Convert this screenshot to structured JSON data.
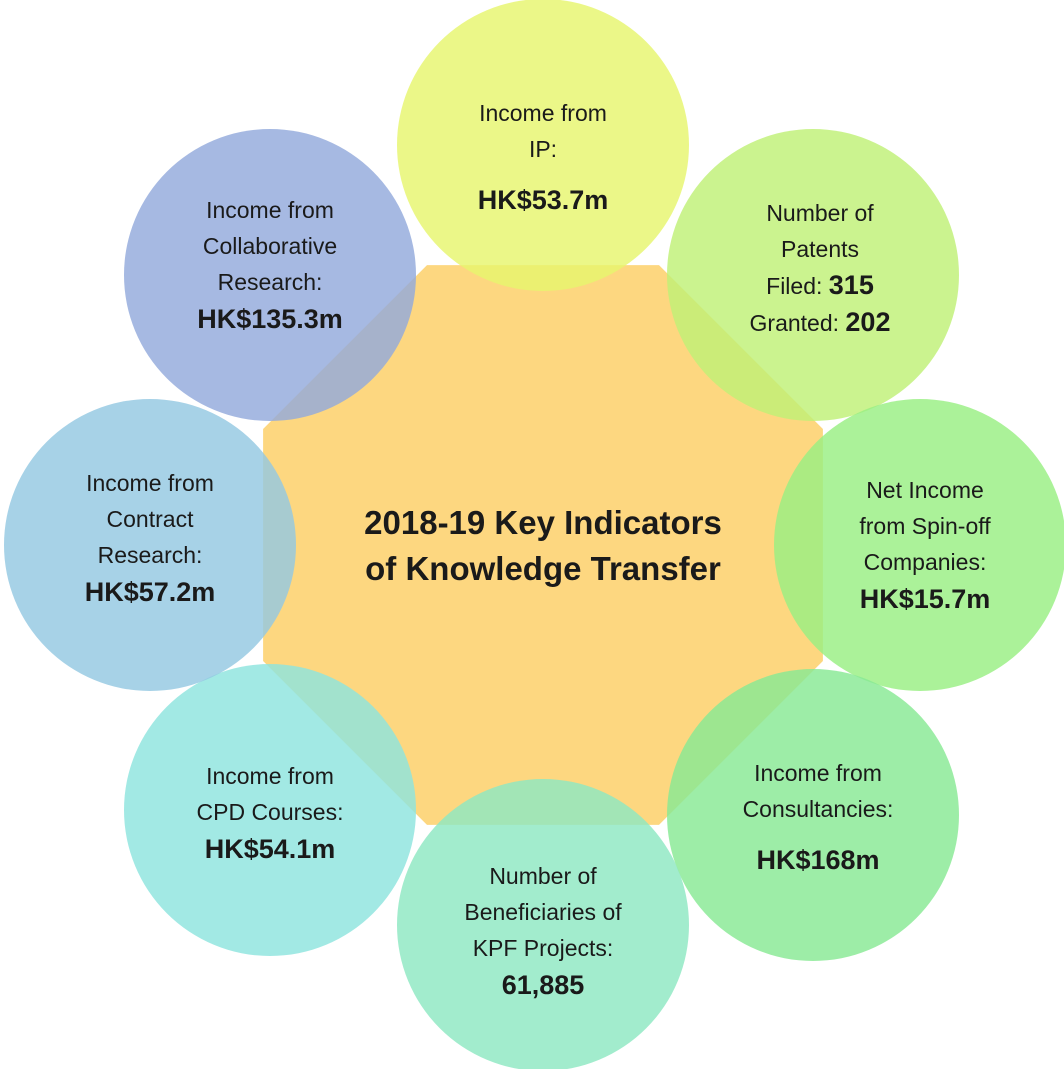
{
  "title": [
    "2018-19 Key Indicators",
    "of Knowledge Transfer"
  ],
  "nodes": [
    {
      "label": [
        "Income from",
        "IP:"
      ],
      "value": "HK$53.7m"
    },
    {
      "label": [
        "Number of",
        "Patents"
      ],
      "items": [
        {
          "label": "Filed:",
          "value": "315"
        },
        {
          "label": "Granted:",
          "value": "202"
        }
      ]
    },
    {
      "label": [
        "Net Income",
        "from Spin-off",
        "Companies:"
      ],
      "value": "HK$15.7m"
    },
    {
      "label": [
        "Income from",
        "Consultancies:"
      ],
      "value": "HK$168m"
    },
    {
      "label": [
        "Number of",
        "Beneficiaries of",
        "KPF Projects:"
      ],
      "value": "61,885"
    },
    {
      "label": [
        "Income from",
        "CPD Courses:"
      ],
      "value": "HK$54.1m"
    },
    {
      "label": [
        "Income from",
        "Contract",
        "Research:"
      ],
      "value": "HK$57.2m"
    },
    {
      "label": [
        "Income from",
        "Collaborative",
        "Research:"
      ],
      "value": "HK$135.3m"
    }
  ]
}
